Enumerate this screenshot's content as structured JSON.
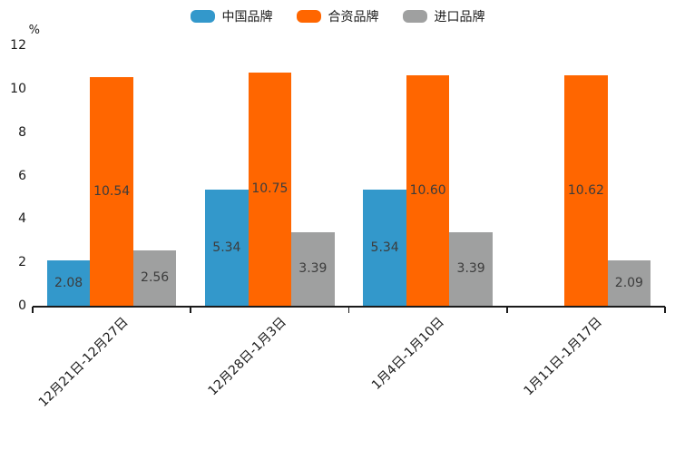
{
  "chart_data": {
    "type": "bar",
    "title": "",
    "ylabel": "%",
    "xlabel": "",
    "ylim": [
      0,
      12
    ],
    "yticks": [
      0,
      2,
      4,
      6,
      8,
      10,
      12
    ],
    "grid": false,
    "legend_position": "top-center",
    "value_label_decimals": 2,
    "categories": [
      "12月21日-12月27日",
      "12月28日-1月3日",
      "1月4日-1月10日",
      "1月11日-1月17日"
    ],
    "series": [
      {
        "name": "中国品牌",
        "color": "#3398CB",
        "values": [
          2.08,
          5.34,
          5.34,
          null
        ]
      },
      {
        "name": "合资品牌",
        "color": "#FF6600",
        "values": [
          10.54,
          10.75,
          10.6,
          10.62
        ]
      },
      {
        "name": "进口品牌",
        "color": "#9FA0A0",
        "values": [
          2.56,
          3.39,
          3.39,
          2.09
        ]
      }
    ]
  },
  "colors": {
    "background": "#ffffff",
    "axis_line": "#1a1a1a",
    "tick_text": "#1a1a1a",
    "value_label_text": "#3c3c3c"
  }
}
